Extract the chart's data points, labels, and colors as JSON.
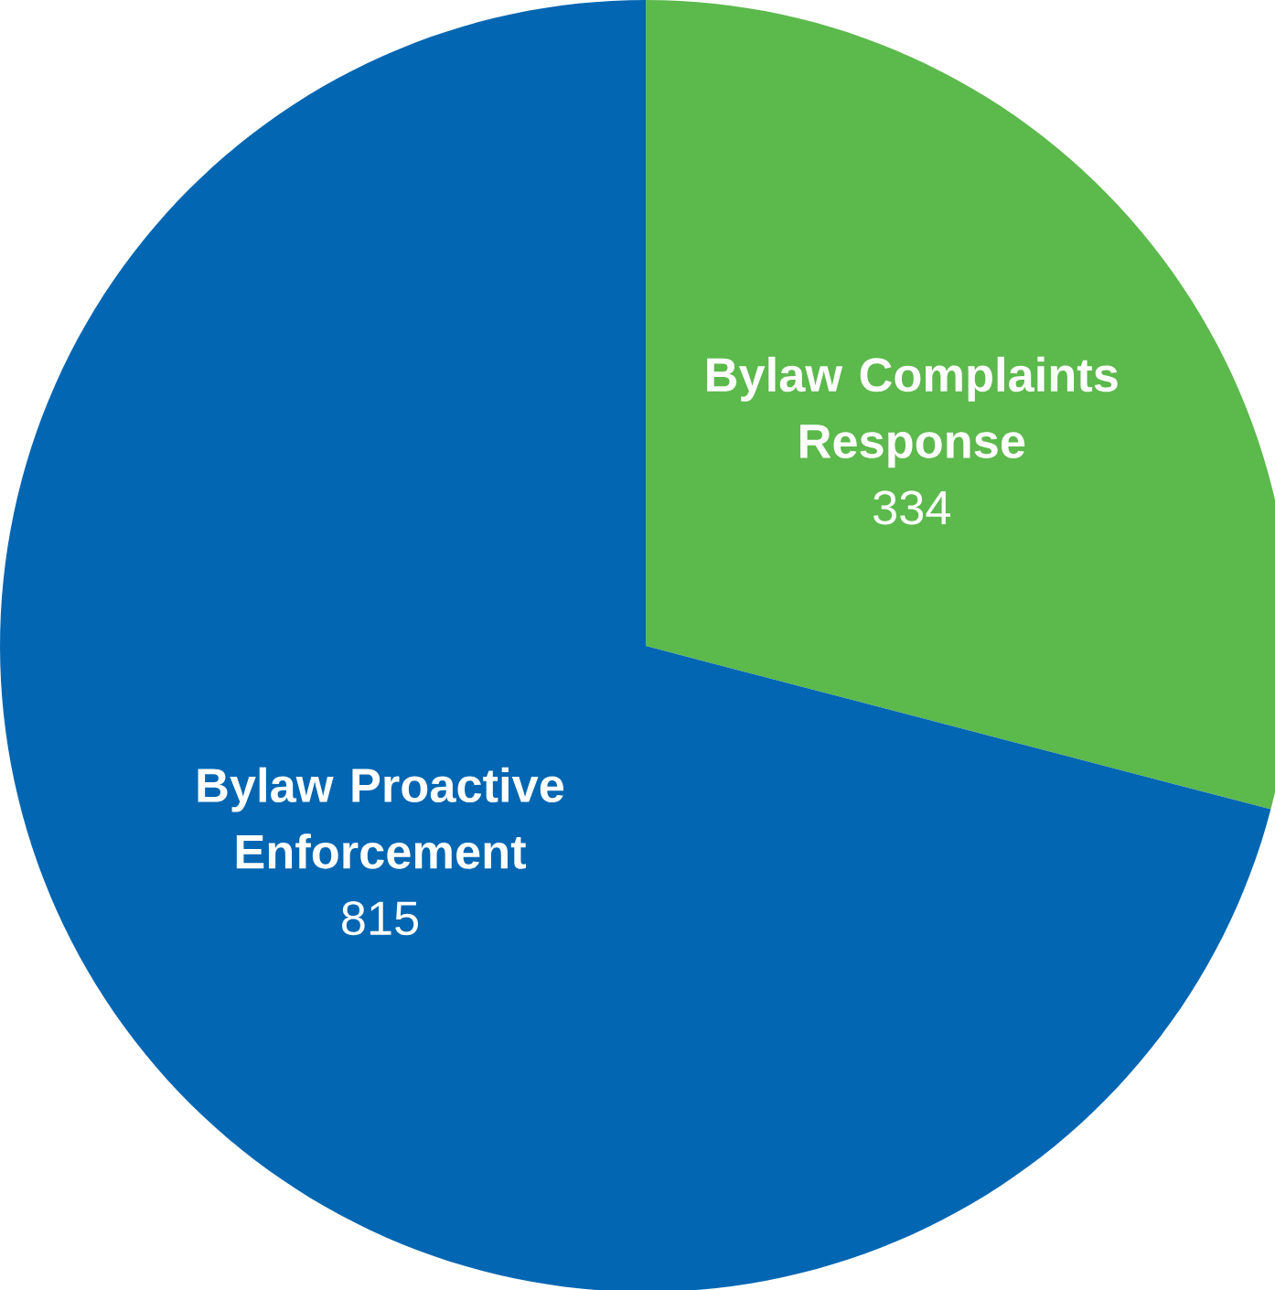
{
  "chart_data": {
    "type": "pie",
    "categories": [
      "Bylaw Complaints Response",
      "Bylaw Proactive Enforcement"
    ],
    "values": [
      334,
      815
    ],
    "colors": [
      "#5cb94c",
      "#0266b2"
    ],
    "data_labels": true
  }
}
